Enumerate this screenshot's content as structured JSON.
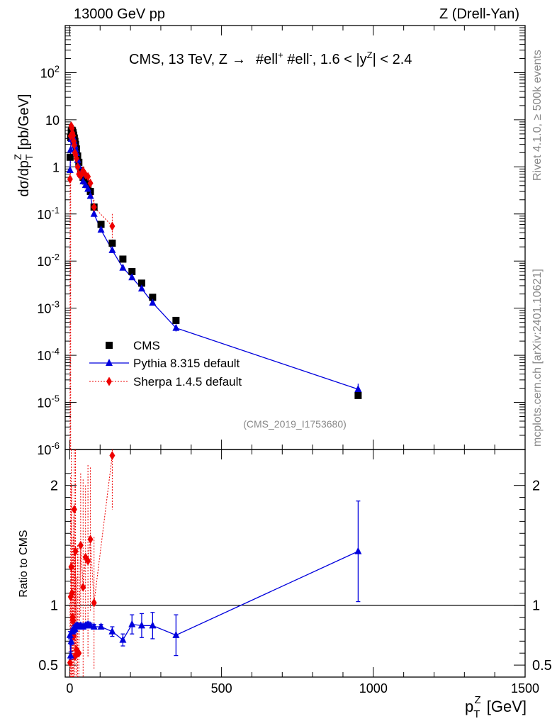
{
  "header": {
    "left": "13000 GeV pp",
    "right": "Z (Drell-Yan)"
  },
  "side": {
    "top": "Rivet 4.1.0, ≥ 500k events",
    "bottom": "mcplots.cern.ch [arXiv:2401.10621]"
  },
  "chart_data": {
    "type": "scatter",
    "title": "CMS, 13 TeV, Z → #ell⁺ #ell⁻, 1.6 < |y^Z| < 2.4",
    "title_parts": {
      "a": "CMS, 13 TeV, Z",
      "arrow": "→",
      "b": "#ell",
      "c": "+",
      "d": " #ell",
      "e": "-",
      "f": ", 1.6 < |y",
      "g": "Z",
      "h": "| < 2.4"
    },
    "ylabel_parts": {
      "a": "dσ/dp",
      "sub": "T",
      "sup": "Z",
      "b": " [pb/GeV]"
    },
    "xlabel_parts": {
      "a": "p",
      "sub": "T",
      "sup": "Z",
      "b": " [GeV]"
    },
    "ratio_ylabel": "Ratio to CMS",
    "analysis_tag": "(CMS_2019_I1753680)",
    "xlim": [
      -15,
      1500
    ],
    "ylim_log": [
      1e-06,
      1000
    ],
    "ratio_ylim": [
      0.4,
      2.3
    ],
    "x_ticks": [
      "0",
      "500",
      "1000",
      "1500"
    ],
    "y_ticks": [
      {
        "base": "10",
        "exp": "-6",
        "v": -6
      },
      {
        "base": "10",
        "exp": "-5",
        "v": -5
      },
      {
        "base": "10",
        "exp": "-4",
        "v": -4
      },
      {
        "base": "10",
        "exp": "-3",
        "v": -3
      },
      {
        "base": "10",
        "exp": "-2",
        "v": -2
      },
      {
        "base": "10",
        "exp": "-1",
        "v": -1
      },
      {
        "base": "1",
        "exp": "",
        "v": 0
      },
      {
        "base": "10",
        "exp": "",
        "v": 1
      },
      {
        "base": "10",
        "exp": "2",
        "v": 2
      }
    ],
    "ratio_ticks": [
      "0.5",
      "1",
      "2"
    ],
    "legend": [
      {
        "label": "CMS",
        "color": "#000000",
        "marker": "square"
      },
      {
        "label": "Pythia 8.315 default",
        "color": "#0000dd",
        "marker": "triangle"
      },
      {
        "label": "Sherpa 1.4.5 default",
        "color": "#ee0000",
        "marker": "diamond"
      }
    ],
    "legend_position": "bottom-left",
    "series": [
      {
        "name": "CMS",
        "x": [
          1,
          3,
          5,
          7,
          9,
          11,
          13,
          15,
          17,
          19,
          22,
          26,
          30,
          36,
          44,
          52,
          60,
          68,
          80,
          103,
          140,
          175,
          205,
          237,
          273,
          350,
          950
        ],
        "y": [
          1.6,
          4.2,
          5.6,
          6.0,
          5.8,
          5.3,
          4.7,
          4.1,
          3.5,
          3.0,
          2.4,
          1.7,
          1.25,
          0.85,
          0.6,
          0.5,
          0.42,
          0.3,
          0.14,
          0.06,
          0.024,
          0.011,
          0.006,
          0.0034,
          0.0017,
          0.00055,
          1.4e-05
        ]
      },
      {
        "name": "Pythia 8.315 default",
        "x": [
          1,
          3,
          5,
          7,
          9,
          11,
          13,
          15,
          17,
          19,
          22,
          26,
          30,
          36,
          44,
          52,
          60,
          68,
          80,
          103,
          140,
          175,
          205,
          237,
          273,
          350,
          950
        ],
        "y": [
          0.85,
          2.3,
          3.9,
          4.5,
          4.5,
          4.2,
          3.7,
          3.3,
          2.8,
          2.4,
          1.95,
          1.4,
          1.03,
          0.7,
          0.49,
          0.41,
          0.34,
          0.24,
          0.1,
          0.046,
          0.017,
          0.0072,
          0.0045,
          0.0026,
          0.0013,
          0.00038,
          1.9e-05
        ],
        "ratio": [
          0.75,
          0.58,
          0.7,
          0.78,
          0.78,
          0.79,
          0.8,
          0.81,
          0.8,
          0.82,
          0.83,
          0.83,
          0.82,
          0.83,
          0.82,
          0.83,
          0.84,
          0.83,
          0.82,
          0.82,
          0.78,
          0.71,
          0.84,
          0.83,
          0.83,
          0.75,
          1.45
        ],
        "ratio_err": [
          0.03,
          0.03,
          0.03,
          0.02,
          0.02,
          0.02,
          0.02,
          0.02,
          0.02,
          0.02,
          0.02,
          0.02,
          0.02,
          0.02,
          0.02,
          0.02,
          0.02,
          0.02,
          0.02,
          0.02,
          0.04,
          0.05,
          0.08,
          0.1,
          0.11,
          0.17,
          0.42
        ]
      },
      {
        "name": "Sherpa 1.4.5 default",
        "x": [
          1,
          3,
          5,
          7,
          9,
          11,
          13,
          15,
          17,
          19,
          22,
          26,
          30,
          36,
          44,
          52,
          60,
          68,
          80,
          140
        ],
        "y": [
          0.55,
          4.5,
          7.4,
          6.6,
          5.2,
          4.6,
          3.5,
          2.9,
          2.0,
          1.8,
          1.5,
          1.0,
          0.7,
          0.65,
          0.82,
          0.68,
          0.62,
          0.45,
          0.14,
          0.055
        ],
        "ratio": [
          0.52,
          1.07,
          1.32,
          1.1,
          0.9,
          0.87,
          0.74,
          1.8,
          0.57,
          1.45,
          0.63,
          0.6,
          0.6,
          1.5,
          1.15,
          1.4,
          1.37,
          1.55,
          1.02,
          2.25
        ],
        "ratio_err": [
          0.5,
          1.0,
          1.0,
          0.9,
          0.6,
          0.7,
          1.0,
          0.8,
          0.9,
          0.9,
          0.6,
          0.9,
          0.9,
          0.6,
          0.9,
          0.6,
          0.8,
          0.6,
          0.55,
          0.45
        ]
      }
    ]
  }
}
